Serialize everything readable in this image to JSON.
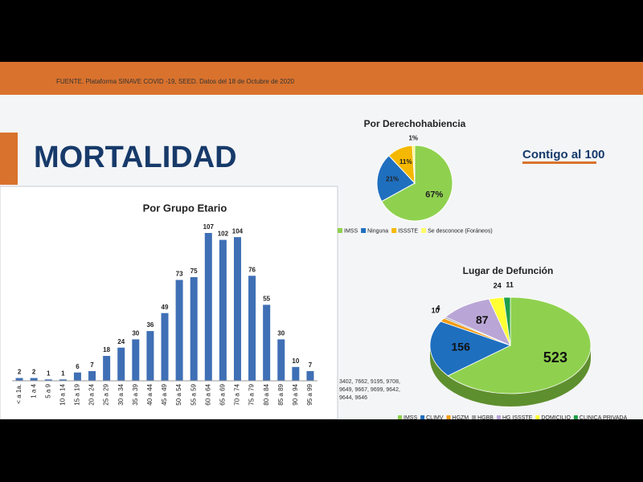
{
  "source": "FUENTE. Plataforma SINAVE COVID -19, SEED. Datos del 18 de Octubre de 2020",
  "heading": "MORTALIDAD",
  "logo": "Contigo al 100",
  "chart_data": [
    {
      "type": "bar",
      "title": "Por Grupo Etario",
      "color": "#3f6fb5",
      "categories": [
        "< a 1a.",
        "1 a 4",
        "5 a 9",
        "10 a 14",
        "15 a 19",
        "20 a 24",
        "25 a 29",
        "30 a 34",
        "35 a 39",
        "40 a 44",
        "45 a 49",
        "50 a 54",
        "55 a 59",
        "60 a 64",
        "65 a 69",
        "70 a 74",
        "75 a 79",
        "80 a 84",
        "85 a 89",
        "90 a 94",
        "95 a 99"
      ],
      "values": [
        2,
        2,
        1,
        1,
        6,
        7,
        18,
        24,
        30,
        36,
        49,
        73,
        75,
        107,
        102,
        104,
        76,
        55,
        30,
        10,
        7
      ]
    },
    {
      "type": "pie",
      "title": "Por Derechohabiencia",
      "categories": [
        "IMSS",
        "Ninguna",
        "ISSSTE",
        "Se desconoce (Foráneos)"
      ],
      "values": [
        67,
        21,
        11,
        1
      ],
      "value_labels": [
        "67%",
        "21%",
        "11%",
        "1%"
      ],
      "colors": [
        "#8fd14f",
        "#1f6fbf",
        "#f5b800",
        "#ffff66"
      ]
    },
    {
      "type": "pie3d",
      "title": "Lugar de Defunción",
      "categories": [
        "IMSS",
        "CLIMV",
        "HGZM",
        "HGBB",
        "HG ISSSTE",
        "DOMICILIO",
        "CLINICA PRIVADA"
      ],
      "values": [
        523,
        156,
        10,
        4,
        87,
        24,
        11
      ],
      "colors": [
        "#8fd14f",
        "#1f6fbf",
        "#f39c12",
        "#a0a0a0",
        "#b9a6d6",
        "#ffff33",
        "#1e9e4a"
      ],
      "annotation": [
        "3402, 7662, 9195, 9708,",
        "9649, 9667, 9699, 9642,",
        "9644, 9646"
      ]
    }
  ]
}
